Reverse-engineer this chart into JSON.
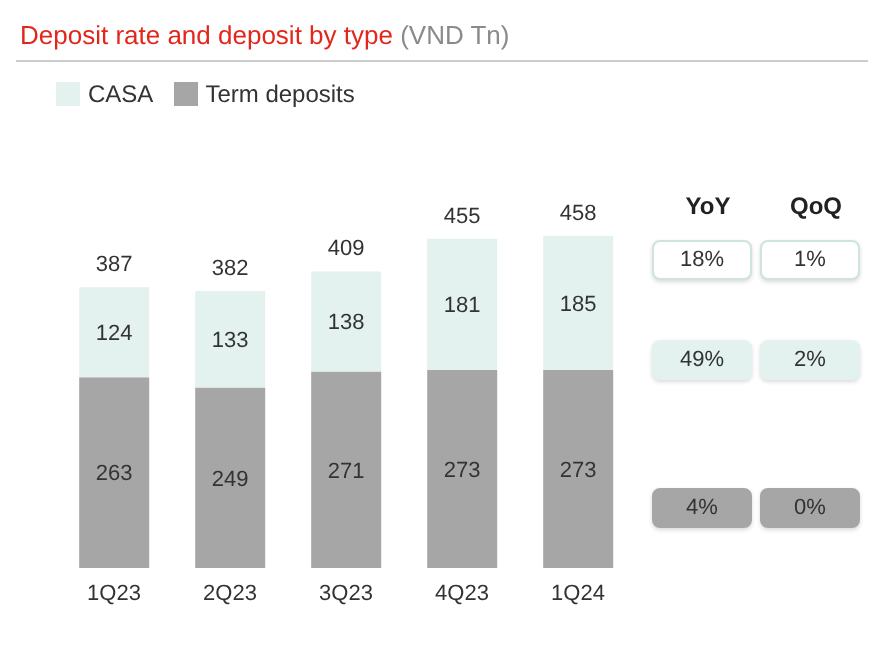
{
  "chart_data": {
    "type": "bar",
    "title": "Deposit rate and deposit by type",
    "subtitle": "(VND Tn)",
    "categories": [
      "1Q23",
      "2Q23",
      "3Q23",
      "4Q23",
      "1Q24"
    ],
    "stacked": true,
    "data_labels": true,
    "legend": "top left",
    "grid": false,
    "series": [
      {
        "name": "Term deposits",
        "color": "#a6a6a6",
        "values": [
          263,
          249,
          271,
          273,
          273
        ]
      },
      {
        "name": "CASA",
        "color": "#e3f2ef",
        "values": [
          124,
          133,
          138,
          181,
          185
        ]
      }
    ],
    "totals": [
      "387",
      "382",
      "409",
      "455",
      "458"
    ],
    "annotations": [
      "YoY",
      "QoQ",
      "18%",
      "1%",
      "49%",
      "2%",
      "4%",
      "0%"
    ]
  }
}
